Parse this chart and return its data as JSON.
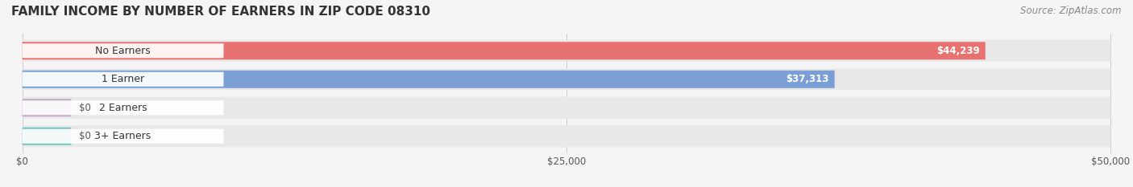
{
  "title": "FAMILY INCOME BY NUMBER OF EARNERS IN ZIP CODE 08310",
  "source": "Source: ZipAtlas.com",
  "categories": [
    "No Earners",
    "1 Earner",
    "2 Earners",
    "3+ Earners"
  ],
  "values": [
    44239,
    37313,
    0,
    0
  ],
  "bar_colors": [
    "#E87272",
    "#7B9FD4",
    "#C4A8C8",
    "#72C8C0"
  ],
  "label_colors": [
    "#E87272",
    "#7B9FD4",
    "#C4A8C8",
    "#72C8C0"
  ],
  "value_labels": [
    "$44,239",
    "$37,313",
    "$0",
    "$0"
  ],
  "xlim": [
    0,
    50000
  ],
  "xticks": [
    0,
    25000,
    50000
  ],
  "xticklabels": [
    "$0",
    "$25,000",
    "$50,000"
  ],
  "bg_color": "#f5f5f5",
  "bar_bg_color": "#e8e8e8",
  "title_fontsize": 11,
  "source_fontsize": 8.5,
  "label_fontsize": 9,
  "value_fontsize": 8.5,
  "tick_fontsize": 8.5
}
